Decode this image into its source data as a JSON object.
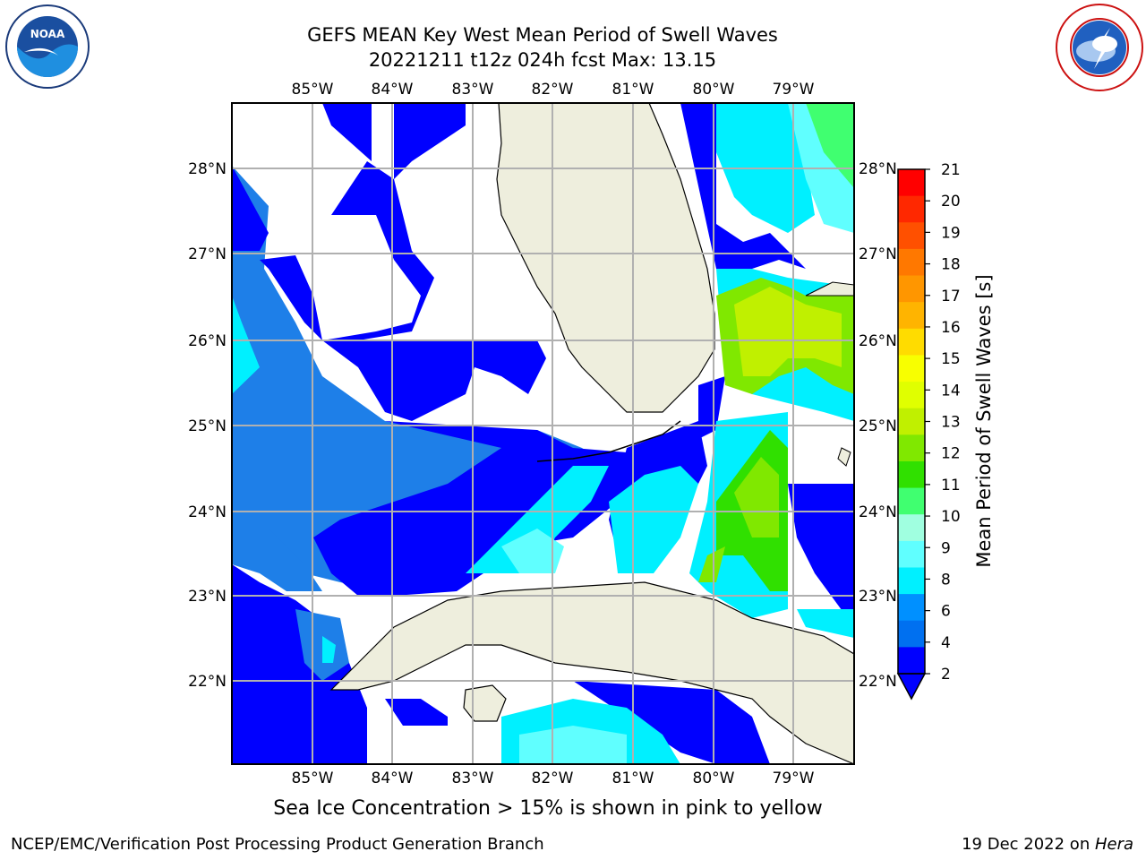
{
  "title": {
    "line1": "GEFS MEAN Key West Mean Period of Swell Waves",
    "line2": "20221211 t12z 024h fcst   Max: 13.15"
  },
  "map": {
    "lon_labels": [
      "85°W",
      "84°W",
      "83°W",
      "82°W",
      "81°W",
      "80°W",
      "79°W"
    ],
    "lat_labels": [
      "28°N",
      "27°N",
      "26°N",
      "25°N",
      "24°N",
      "23°N",
      "22°N"
    ],
    "land_color": "#eeeedd",
    "gridline_color": "#b0b0b0"
  },
  "colorbar": {
    "label": "Mean Period of Swell Waves [s]",
    "ticks": [
      "21",
      "20",
      "19",
      "18",
      "17",
      "16",
      "15",
      "14",
      "13",
      "12",
      "11",
      "10",
      "9",
      "8",
      "6",
      "4",
      "2"
    ],
    "colors": [
      "#ff0000",
      "#ff2800",
      "#ff5000",
      "#ff7800",
      "#ff9600",
      "#ffb400",
      "#ffdc00",
      "#f8ff00",
      "#e0ff00",
      "#c0f000",
      "#80e800",
      "#30e000",
      "#40ff70",
      "#a0ffe0",
      "#60ffff",
      "#00f0ff",
      "#0090ff",
      "#0070f0",
      "#0000ff"
    ]
  },
  "notes": {
    "sea_ice": "Sea Ice Concentration > 15% is shown in pink to yellow"
  },
  "footer": {
    "left": "NCEP/EMC/Verification Post Processing Product Generation Branch",
    "right_date": "19 Dec 2022 on ",
    "right_host": "Hera"
  },
  "logos": {
    "left": "NOAA",
    "right": "NATIONAL WEATHER SERVICE"
  }
}
